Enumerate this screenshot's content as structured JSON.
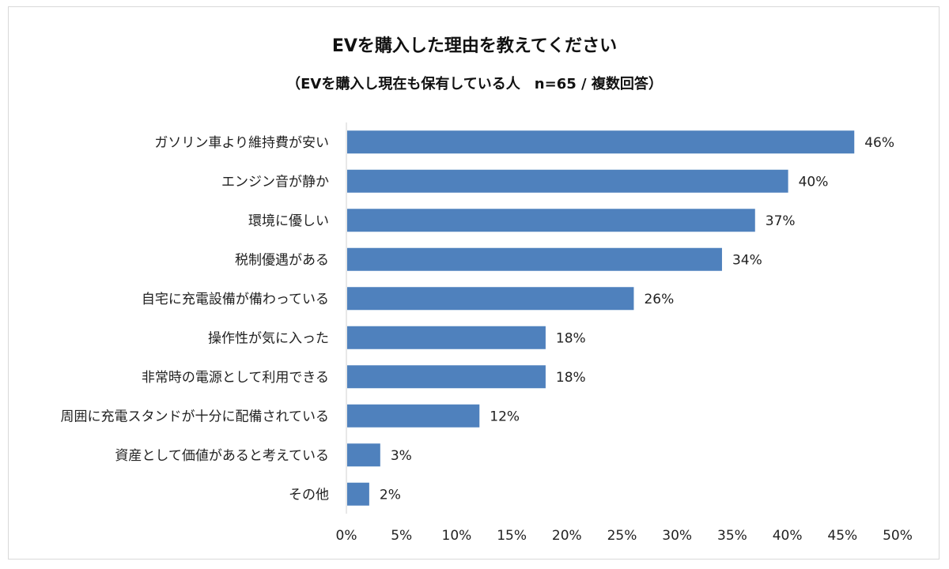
{
  "chart_data": {
    "type": "bar",
    "orientation": "horizontal",
    "title": "EVを購入した理由を教えてください",
    "subtitle": "（EVを購入し現在も保有している人　n=65 / 複数回答）",
    "categories": [
      "ガソリン車より維持費が安い",
      "エンジン音が静か",
      "環境に優しい",
      "税制優遇がある",
      "自宅に充電設備が備わっている",
      "操作性が気に入った",
      "非常時の電源として利用できる",
      "周囲に充電スタンドが十分に配備されている",
      "資産として価値があると考えている",
      "その他"
    ],
    "values": [
      46,
      40,
      37,
      34,
      26,
      18,
      18,
      12,
      3,
      2
    ],
    "value_labels": [
      "46%",
      "40%",
      "37%",
      "34%",
      "26%",
      "18%",
      "18%",
      "12%",
      "3%",
      "2%"
    ],
    "xlim": [
      0,
      50
    ],
    "xticks": [
      "0%",
      "5%",
      "10%",
      "15%",
      "20%",
      "25%",
      "30%",
      "35%",
      "40%",
      "45%",
      "50%"
    ],
    "grid": false,
    "bar_color": "#4f81bd"
  }
}
